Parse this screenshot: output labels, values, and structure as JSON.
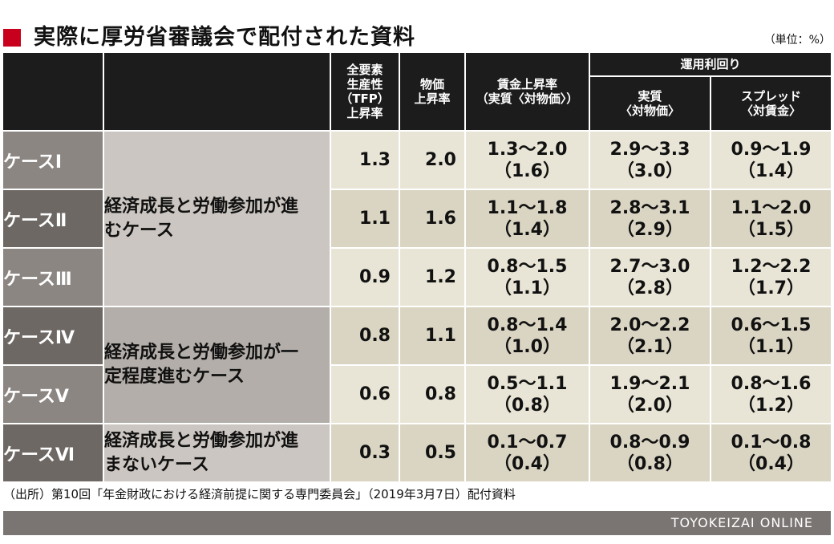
{
  "title": "実際に厚労省審議会で配付された資料",
  "unit_label": "（単位：%）",
  "accent_color": "#c8001e",
  "chart_data": {
    "type": "table",
    "headers": {
      "tfp": [
        "全要素",
        "生産性",
        "（TFP）",
        "上昇率"
      ],
      "price": [
        "物価",
        "上昇率"
      ],
      "wage": [
        "賃金上昇率",
        "（実質〈対物価〉）"
      ],
      "yield_group": "運用利回り",
      "yield_real": [
        "実質",
        "〈対物価〉"
      ],
      "yield_spread": [
        "スプレッド",
        "〈対賃金〉"
      ]
    },
    "descriptions": [
      "経済成長と労働参加が進むケース",
      "経済成長と労働参加が一定程度進むケース",
      "経済成長と労働参加が進まないケース"
    ],
    "rows": [
      {
        "case": "ケースⅠ",
        "tfp": "1.3",
        "price": "2.0",
        "wage": "1.3～2.0",
        "wage_mid": "（1.6）",
        "real": "2.9～3.3",
        "real_mid": "（3.0）",
        "spread": "0.9～1.9",
        "spread_mid": "（1.4）"
      },
      {
        "case": "ケースⅡ",
        "tfp": "1.1",
        "price": "1.6",
        "wage": "1.1～1.8",
        "wage_mid": "（1.4）",
        "real": "2.8～3.1",
        "real_mid": "（2.9）",
        "spread": "1.1～2.0",
        "spread_mid": "（1.5）"
      },
      {
        "case": "ケースⅢ",
        "tfp": "0.9",
        "price": "1.2",
        "wage": "0.8～1.5",
        "wage_mid": "（1.1）",
        "real": "2.7～3.0",
        "real_mid": "（2.8）",
        "spread": "1.2～2.2",
        "spread_mid": "（1.7）"
      },
      {
        "case": "ケースⅣ",
        "tfp": "0.8",
        "price": "1.1",
        "wage": "0.8～1.4",
        "wage_mid": "（1.0）",
        "real": "2.0～2.2",
        "real_mid": "（2.1）",
        "spread": "0.6～1.5",
        "spread_mid": "（1.1）"
      },
      {
        "case": "ケースⅤ",
        "tfp": "0.6",
        "price": "0.8",
        "wage": "0.5～1.1",
        "wage_mid": "（0.8）",
        "real": "1.9～2.1",
        "real_mid": "（2.0）",
        "spread": "0.8～1.6",
        "spread_mid": "（1.2）"
      },
      {
        "case": "ケースⅥ",
        "tfp": "0.3",
        "price": "0.5",
        "wage": "0.1～0.7",
        "wage_mid": "（0.4）",
        "real": "0.8～0.9",
        "real_mid": "（0.8）",
        "spread": "0.1～0.8",
        "spread_mid": "（0.4）"
      }
    ]
  },
  "source": "（出所）第10回「年金財政における経済前提に関する専門委員会」（2019年3月7日）配付資料",
  "brand": "TOYOKEIZAI ONLINE"
}
